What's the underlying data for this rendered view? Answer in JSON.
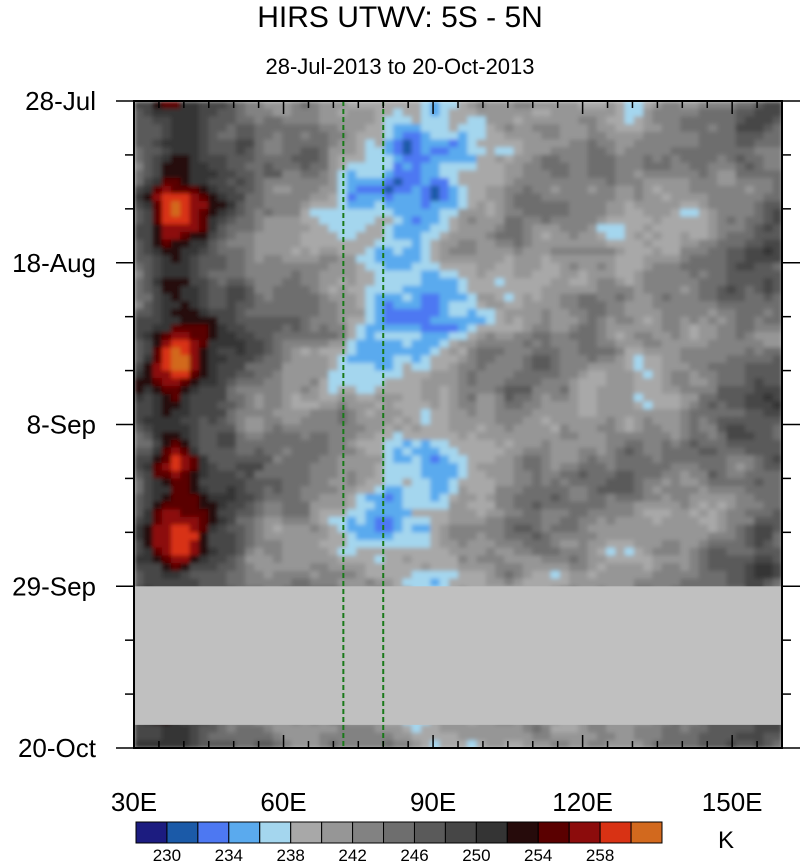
{
  "chart_data": {
    "type": "heatmap",
    "title": "HIRS UTWV: 5S - 5N",
    "subtitle": "28-Jul-2013 to 20-Oct-2013",
    "x_axis": {
      "range": [
        30,
        160
      ],
      "ticks": [
        {
          "value": 30,
          "label": "30E"
        },
        {
          "value": 60,
          "label": "60E"
        },
        {
          "value": 90,
          "label": "90E"
        },
        {
          "value": 120,
          "label": "120E"
        },
        {
          "value": 150,
          "label": "150E"
        }
      ]
    },
    "y_axis": {
      "range": [
        "2013-07-28",
        "2013-10-20"
      ],
      "direction": "top-to-bottom",
      "ticks": [
        {
          "value": "2013-07-28",
          "label": "28-Jul"
        },
        {
          "value": "2013-08-18",
          "label": "18-Aug"
        },
        {
          "value": "2013-09-08",
          "label": "8-Sep"
        },
        {
          "value": "2013-09-29",
          "label": "29-Sep"
        },
        {
          "value": "2013-10-20",
          "label": "20-Oct"
        }
      ]
    },
    "missing_data": {
      "date_from": "2013-09-29",
      "date_to": "2013-10-17",
      "color": "#c0c0c0"
    },
    "reference_lines": [
      {
        "longitude": 72,
        "color": "#1a7a1a",
        "style": "dashed"
      },
      {
        "longitude": 80,
        "color": "#1a7a1a",
        "style": "dashed"
      }
    ],
    "colorbar": {
      "unit": "K",
      "levels": [
        228,
        230,
        232,
        234,
        236,
        238,
        240,
        242,
        244,
        246,
        248,
        250,
        252,
        254,
        256,
        258,
        260
      ],
      "colors": [
        "#1c1c80",
        "#1b5aa8",
        "#4d78f2",
        "#5aaaee",
        "#a4d6ee",
        "#a8a8a8",
        "#969696",
        "#828282",
        "#6e6e6e",
        "#5a5a5a",
        "#464646",
        "#343434",
        "#260b0b",
        "#5a0000",
        "#8c0c0c",
        "#d83214",
        "#d2691e"
      ],
      "tick_labels": [
        {
          "value": 230,
          "label": "230"
        },
        {
          "value": 234,
          "label": "234"
        },
        {
          "value": 238,
          "label": "238"
        },
        {
          "value": 242,
          "label": "242"
        },
        {
          "value": 246,
          "label": "246"
        },
        {
          "value": 250,
          "label": "250"
        },
        {
          "value": 254,
          "label": "254"
        },
        {
          "value": 258,
          "label": "258"
        }
      ]
    }
  }
}
